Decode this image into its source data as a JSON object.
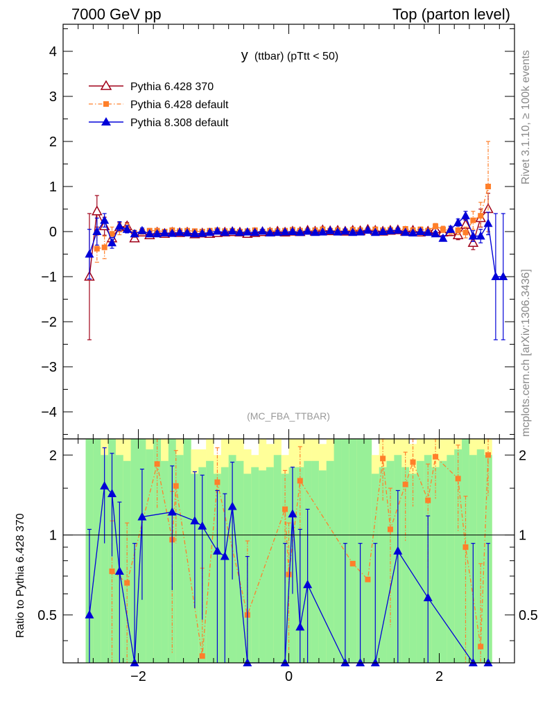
{
  "header": {
    "left": "7000 GeV pp",
    "right": "Top (parton level)"
  },
  "side": {
    "rivet": "Rivet 3.1.10, ≥ 100k events",
    "mcplots": "mcplots.cern.ch [arXiv:1306.3436]"
  },
  "colors": {
    "p6_370": "#a00018",
    "p6_def": "#ff7f2a",
    "p8_def": "#0000d8",
    "band_green": "#98f098",
    "band_yellow": "#ffff99"
  },
  "chart_data": [
    {
      "type": "line",
      "title": "y (ttbar) (pTtt < 50)",
      "title_main": "y",
      "title_rest": "(ttbar) (pTtt < 50)",
      "watermark": "(MC_FBA_TTBAR)",
      "xlim": [
        -3.0,
        3.0
      ],
      "ylim": [
        -4.6,
        4.6
      ],
      "xticks": [
        -2,
        0,
        2
      ],
      "yticks": [
        -4,
        -3,
        -2,
        -1,
        0,
        1,
        2,
        3,
        4
      ],
      "ytick_labels": [
        "−4",
        "−3",
        "−2",
        "−1",
        "0",
        "1",
        "2",
        "3",
        "4"
      ],
      "legend_position": "top-left",
      "series": [
        {
          "name": "Pythia 6.428 370",
          "marker": "open-triangle",
          "style": "solid",
          "x": [
            -2.65,
            -2.55,
            -2.45,
            -2.35,
            -2.25,
            -2.15,
            -2.05,
            -1.95,
            -1.85,
            -1.75,
            -1.65,
            -1.55,
            -1.45,
            -1.35,
            -1.25,
            -1.15,
            -1.05,
            -0.95,
            -0.85,
            -0.75,
            -0.65,
            -0.55,
            -0.45,
            -0.35,
            -0.25,
            -0.15,
            -0.05,
            0.05,
            0.15,
            0.25,
            0.35,
            0.45,
            0.55,
            0.65,
            0.75,
            0.85,
            0.95,
            1.05,
            1.15,
            1.25,
            1.35,
            1.45,
            1.55,
            1.65,
            1.75,
            1.85,
            1.95,
            2.05,
            2.15,
            2.25,
            2.35,
            2.45,
            2.55,
            2.65
          ],
          "y": [
            -1.0,
            0.45,
            0.12,
            -0.15,
            0.1,
            0.12,
            -0.15,
            -0.02,
            -0.08,
            -0.02,
            -0.05,
            -0.02,
            -0.03,
            -0.02,
            -0.06,
            -0.04,
            -0.05,
            -0.03,
            -0.02,
            -0.01,
            -0.02,
            -0.05,
            -0.03,
            -0.01,
            -0.02,
            0.0,
            -0.02,
            0.0,
            -0.01,
            0.02,
            0.0,
            0.03,
            0.01,
            0.02,
            0.0,
            0.02,
            0.01,
            0.04,
            0.02,
            0.0,
            0.02,
            0.03,
            0.0,
            0.02,
            -0.02,
            0.0,
            0.05,
            -0.02,
            -0.01,
            -0.08,
            0.15,
            -0.25,
            0.3,
            0.5
          ],
          "err": [
            1.4,
            0.35,
            0.2,
            0.12,
            0.1,
            0.08,
            0.07,
            0.06,
            0.05,
            0.05,
            0.05,
            0.04,
            0.04,
            0.04,
            0.04,
            0.04,
            0.04,
            0.04,
            0.04,
            0.04,
            0.04,
            0.04,
            0.04,
            0.04,
            0.04,
            0.04,
            0.04,
            0.04,
            0.04,
            0.04,
            0.04,
            0.04,
            0.04,
            0.04,
            0.04,
            0.04,
            0.04,
            0.04,
            0.04,
            0.04,
            0.04,
            0.05,
            0.05,
            0.05,
            0.05,
            0.06,
            0.06,
            0.07,
            0.08,
            0.1,
            0.12,
            0.15,
            0.2,
            0.35
          ]
        },
        {
          "name": "Pythia 6.428 default",
          "marker": "filled-square",
          "style": "dashdot",
          "x": [
            -2.55,
            -2.45,
            -2.35,
            -2.25,
            -2.15,
            -2.05,
            -1.95,
            -1.85,
            -1.75,
            -1.65,
            -1.55,
            -1.45,
            -1.35,
            -1.25,
            -1.15,
            -1.05,
            -0.95,
            -0.85,
            -0.75,
            -0.65,
            -0.55,
            -0.45,
            -0.35,
            -0.25,
            -0.15,
            -0.05,
            0.05,
            0.15,
            0.25,
            0.35,
            0.45,
            0.55,
            0.65,
            0.75,
            0.85,
            0.95,
            1.05,
            1.15,
            1.25,
            1.35,
            1.45,
            1.55,
            1.65,
            1.75,
            1.85,
            1.95,
            2.05,
            2.15,
            2.25,
            2.35,
            2.45,
            2.55,
            2.65
          ],
          "y": [
            -0.38,
            -0.35,
            -0.05,
            0.05,
            0.08,
            -0.05,
            0.0,
            0.02,
            0.02,
            0.0,
            0.03,
            0.01,
            0.02,
            0.01,
            0.0,
            0.02,
            0.03,
            0.01,
            0.02,
            0.0,
            0.01,
            0.03,
            0.0,
            0.02,
            0.01,
            0.02,
            0.04,
            0.02,
            0.01,
            0.03,
            0.05,
            0.02,
            0.03,
            0.01,
            0.04,
            0.03,
            0.02,
            0.05,
            0.03,
            0.04,
            0.02,
            0.06,
            0.03,
            0.05,
            0.02,
            0.12,
            0.05,
            0.02,
            0.03,
            -0.02,
            0.25,
            0.35,
            1.0
          ],
          "err": [
            0.3,
            0.25,
            0.15,
            0.12,
            0.1,
            0.08,
            0.06,
            0.05,
            0.05,
            0.05,
            0.04,
            0.04,
            0.04,
            0.04,
            0.04,
            0.04,
            0.04,
            0.04,
            0.04,
            0.04,
            0.04,
            0.04,
            0.04,
            0.04,
            0.04,
            0.04,
            0.04,
            0.04,
            0.04,
            0.04,
            0.04,
            0.04,
            0.04,
            0.04,
            0.04,
            0.04,
            0.04,
            0.04,
            0.04,
            0.04,
            0.04,
            0.05,
            0.05,
            0.05,
            0.05,
            0.06,
            0.07,
            0.08,
            0.1,
            0.12,
            0.2,
            0.3,
            1.0
          ]
        },
        {
          "name": "Pythia 8.308 default",
          "marker": "filled-triangle",
          "style": "solid",
          "x": [
            -2.65,
            -2.55,
            -2.45,
            -2.35,
            -2.25,
            -2.15,
            -2.05,
            -1.95,
            -1.85,
            -1.75,
            -1.65,
            -1.55,
            -1.45,
            -1.35,
            -1.25,
            -1.15,
            -1.05,
            -0.95,
            -0.85,
            -0.75,
            -0.65,
            -0.55,
            -0.45,
            -0.35,
            -0.25,
            -0.15,
            -0.05,
            0.05,
            0.15,
            0.25,
            0.35,
            0.45,
            0.55,
            0.65,
            0.75,
            0.85,
            0.95,
            1.05,
            1.15,
            1.25,
            1.35,
            1.45,
            1.55,
            1.65,
            1.75,
            1.85,
            1.95,
            2.05,
            2.15,
            2.25,
            2.35,
            2.45,
            2.55,
            2.65,
            2.75,
            2.85
          ],
          "y": [
            -0.5,
            0.0,
            0.25,
            -0.25,
            0.12,
            0.05,
            -0.05,
            0.02,
            -0.05,
            -0.05,
            -0.03,
            -0.04,
            -0.02,
            -0.03,
            -0.05,
            -0.04,
            -0.02,
            0.01,
            -0.02,
            0.01,
            -0.02,
            -0.01,
            -0.02,
            0.01,
            -0.03,
            -0.02,
            -0.01,
            0.0,
            -0.02,
            0.01,
            -0.02,
            -0.01,
            0.02,
            -0.01,
            0.01,
            -0.02,
            -0.01,
            0.03,
            -0.02,
            0.0,
            0.02,
            0.03,
            -0.02,
            -0.03,
            0.0,
            -0.02,
            -0.05,
            -0.15,
            0.05,
            0.2,
            0.35,
            -0.1,
            -0.1,
            0.18,
            -1.0,
            -1.0
          ],
          "err": [
            0.55,
            0.3,
            0.15,
            0.12,
            0.1,
            0.08,
            0.07,
            0.06,
            0.05,
            0.05,
            0.05,
            0.04,
            0.04,
            0.04,
            0.04,
            0.04,
            0.04,
            0.04,
            0.04,
            0.04,
            0.04,
            0.04,
            0.04,
            0.04,
            0.04,
            0.04,
            0.04,
            0.04,
            0.04,
            0.04,
            0.04,
            0.04,
            0.04,
            0.04,
            0.04,
            0.04,
            0.04,
            0.04,
            0.04,
            0.04,
            0.04,
            0.04,
            0.04,
            0.04,
            0.05,
            0.05,
            0.05,
            0.06,
            0.07,
            0.08,
            0.1,
            0.12,
            0.15,
            0.25,
            1.4,
            1.4
          ]
        }
      ]
    },
    {
      "type": "line",
      "ylabel": "Ratio to Pythia 6.428 370",
      "xlim": [
        -3.0,
        3.0
      ],
      "ylim": [
        0.33,
        2.3
      ],
      "xticks": [
        -2,
        0,
        2
      ],
      "xtick_labels": [
        "−2",
        "0",
        "2"
      ],
      "yticks": [
        0.5,
        1,
        2
      ],
      "ytick_labels": [
        "0.5",
        "1",
        "2"
      ],
      "reference_line": 1,
      "bands": {
        "x_edges": [
          -2.7,
          -2.6,
          -2.5,
          -2.4,
          -2.3,
          -2.2,
          -2.1,
          -2.0,
          -1.9,
          -1.8,
          -1.7,
          -1.6,
          -1.5,
          -1.4,
          -1.3,
          -1.2,
          -1.1,
          -1.0,
          -0.9,
          -0.8,
          -0.7,
          -0.6,
          -0.5,
          -0.4,
          -0.3,
          -0.2,
          -0.1,
          0.0,
          0.1,
          0.2,
          0.3,
          0.4,
          0.5,
          0.6,
          0.7,
          0.8,
          0.9,
          1.0,
          1.1,
          1.2,
          1.3,
          1.4,
          1.5,
          1.6,
          1.7,
          1.8,
          1.9,
          2.0,
          2.1,
          2.2,
          2.3,
          2.4,
          2.5,
          2.6,
          2.7
        ],
        "green_lo": [
          0.33,
          0.33,
          0.33,
          0.33,
          0.33,
          0.33,
          0.33,
          0.33,
          0.33,
          0.33,
          0.33,
          0.33,
          0.33,
          0.33,
          0.33,
          0.33,
          0.33,
          0.33,
          0.33,
          0.33,
          0.33,
          0.33,
          0.33,
          0.33,
          0.33,
          0.33,
          0.33,
          0.33,
          0.33,
          0.33,
          0.33,
          0.33,
          0.33,
          0.33,
          0.33,
          0.33,
          0.33,
          0.33,
          0.33,
          0.33,
          0.33,
          0.33,
          0.33,
          0.33,
          0.33,
          0.33,
          0.33,
          0.33,
          0.33,
          0.33,
          0.33,
          0.33,
          0.33,
          0.33
        ],
        "green_hi": [
          2.3,
          2.3,
          2.0,
          2.3,
          2.0,
          1.9,
          2.3,
          2.3,
          2.1,
          2.3,
          1.9,
          2.3,
          2.0,
          2.3,
          1.7,
          1.8,
          1.9,
          1.7,
          1.8,
          2.0,
          1.9,
          1.7,
          1.8,
          1.75,
          1.8,
          2.0,
          1.7,
          1.8,
          1.8,
          1.9,
          1.9,
          1.75,
          1.9,
          2.3,
          2.3,
          2.3,
          2.3,
          2.3,
          1.7,
          1.8,
          1.9,
          2.0,
          1.8,
          1.7,
          1.9,
          2.0,
          1.8,
          1.9,
          2.0,
          2.1,
          2.3,
          2.0,
          2.1,
          2.0
        ],
        "yellow_lo": [
          0.33,
          0.33,
          0.33,
          0.33,
          0.33,
          0.33,
          0.33,
          0.33,
          0.33,
          0.33,
          0.33,
          0.33,
          0.33,
          0.33,
          0.33,
          0.33,
          0.33,
          0.33,
          0.33,
          0.33,
          0.33,
          0.33,
          0.33,
          0.33,
          0.33,
          0.33,
          0.33,
          0.33,
          0.33,
          0.33,
          0.33,
          0.33,
          0.33,
          0.33,
          0.33,
          0.33,
          0.33,
          0.33,
          0.33,
          0.33,
          0.33,
          0.33,
          0.33,
          0.33,
          0.33,
          0.33,
          0.33,
          0.33,
          0.33,
          0.33,
          0.33,
          0.33,
          0.33,
          0.33
        ],
        "yellow_hi": [
          2.3,
          2.3,
          2.3,
          2.3,
          2.3,
          2.3,
          2.3,
          2.3,
          2.3,
          2.3,
          2.3,
          2.3,
          2.3,
          2.3,
          2.1,
          2.1,
          2.3,
          2.0,
          2.3,
          2.3,
          2.3,
          2.1,
          2.0,
          2.3,
          2.2,
          2.3,
          2.0,
          2.3,
          2.3,
          2.3,
          2.3,
          2.2,
          2.3,
          2.3,
          2.3,
          2.3,
          2.3,
          2.3,
          2.0,
          2.3,
          2.3,
          2.3,
          2.3,
          2.2,
          2.3,
          2.3,
          2.3,
          2.3,
          2.3,
          2.3,
          2.3,
          2.3,
          2.3,
          2.3
        ]
      },
      "series": [
        {
          "name": "Pythia 6.428 default",
          "marker": "filled-square",
          "style": "dashdot",
          "x": [
            -2.35,
            -2.15,
            -1.75,
            -1.55,
            -1.5,
            -1.15,
            -0.95,
            -0.55,
            -0.05,
            0.0,
            0.15,
            0.85,
            1.05,
            1.25,
            1.35,
            1.55,
            1.65,
            1.85,
            1.95,
            2.25,
            2.35,
            2.55,
            2.65
          ],
          "y": [
            0.73,
            0.66,
            1.85,
            0.96,
            1.53,
            0.35,
            1.58,
            0.5,
            1.25,
            0.71,
            1.6,
            0.78,
            0.68,
            1.94,
            1.05,
            1.55,
            1.88,
            1.35,
            1.97,
            1.63,
            0.9,
            0.38,
            2.0
          ],
          "err_up": [
            0.4,
            0.45,
            0.5,
            0.5,
            0.55,
            0.4,
            0.55,
            0.45,
            0.5,
            0.4,
            0.55,
            0.0,
            0.0,
            0.5,
            0.45,
            0.5,
            0.55,
            0.5,
            0.6,
            0.55,
            0.5,
            0.4,
            0.6
          ],
          "err_dn": [
            0.4,
            0.33,
            0.6,
            0.6,
            0.6,
            0.0,
            0.6,
            0.17,
            0.6,
            0.38,
            0.6,
            0.0,
            0.0,
            0.6,
            0.6,
            0.6,
            0.6,
            0.6,
            0.6,
            0.6,
            0.57,
            0.05,
            0.6
          ]
        },
        {
          "name": "Pythia 8.308 default",
          "marker": "filled-triangle",
          "style": "solid",
          "x": [
            -2.65,
            -2.45,
            -2.35,
            -2.25,
            -2.05,
            -1.95,
            -1.55,
            -1.25,
            -1.15,
            -0.95,
            -0.85,
            -0.75,
            -0.55,
            -0.05,
            0.05,
            0.15,
            0.25,
            0.75,
            0.95,
            1.15,
            1.45,
            1.85,
            2.45,
            2.65
          ],
          "y": [
            0.5,
            1.53,
            1.43,
            0.73,
            0.33,
            1.17,
            1.22,
            1.13,
            1.08,
            0.87,
            0.83,
            1.28,
            0.33,
            0.33,
            1.2,
            0.45,
            0.65,
            0.33,
            0.33,
            0.33,
            0.87,
            0.58,
            0.33,
            0.33
          ],
          "err_up": [
            0.55,
            0.6,
            0.6,
            0.6,
            0.6,
            0.6,
            0.6,
            0.6,
            0.6,
            0.6,
            0.6,
            0.6,
            0.5,
            0.6,
            0.6,
            0.6,
            0.6,
            0.6,
            0.6,
            0.6,
            0.6,
            0.6,
            0.6,
            0.6
          ],
          "err_dn": [
            0.17,
            0.6,
            0.6,
            0.4,
            0.0,
            0.6,
            0.6,
            0.6,
            0.6,
            0.54,
            0.5,
            0.6,
            0.0,
            0.0,
            0.6,
            0.12,
            0.32,
            0.0,
            0.0,
            0.0,
            0.54,
            0.25,
            0.0,
            0.0
          ]
        }
      ]
    }
  ]
}
